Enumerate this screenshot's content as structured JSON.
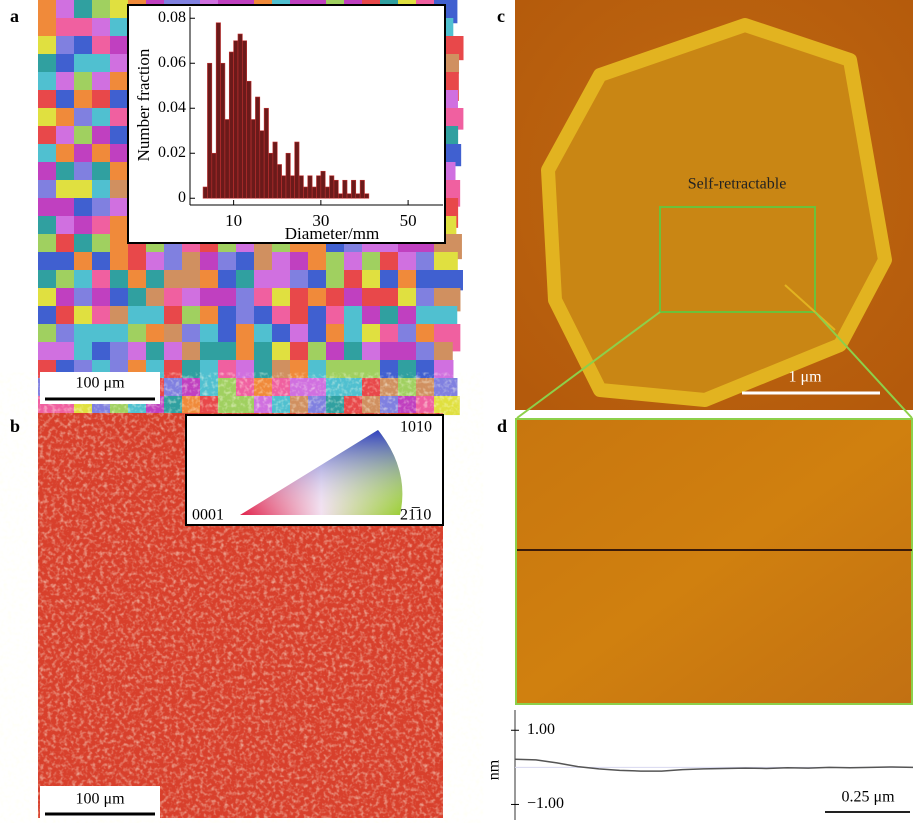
{
  "panels": {
    "a": {
      "label": "a",
      "scale_bar": "100 μm"
    },
    "b": {
      "label": "b",
      "scale_bar": "100 μm",
      "ipf_labels": [
        "0001",
        "1010",
        "21̅10"
      ]
    },
    "c": {
      "label": "c",
      "annotation": "Self-retractable",
      "scale_bar": "1 μm"
    },
    "d": {
      "label": "d",
      "scale_bar": "0.25 μm"
    }
  },
  "chart_data": [
    {
      "type": "histogram",
      "xlabel": "Diameter/mm",
      "ylabel": "Number fraction",
      "color": "#6b1a1a",
      "bins": [
        3,
        4,
        5,
        6,
        7,
        8,
        9,
        10,
        11,
        12,
        13,
        14,
        15,
        16,
        17,
        18,
        19,
        20,
        21,
        22,
        23,
        24,
        25,
        26,
        27,
        28,
        29,
        30,
        31,
        32,
        33,
        34,
        35,
        36,
        37,
        38,
        39,
        40,
        41
      ],
      "values": [
        0.005,
        0.06,
        0.02,
        0.078,
        0.06,
        0.035,
        0.065,
        0.07,
        0.073,
        0.07,
        0.052,
        0.035,
        0.045,
        0.03,
        0.04,
        0.02,
        0.025,
        0.015,
        0.01,
        0.02,
        0.01,
        0.025,
        0.01,
        0.005,
        0.01,
        0.005,
        0.01,
        0.012,
        0.005,
        0.01,
        0.008,
        0.002,
        0.008,
        0.002,
        0.008,
        0.002,
        0.008,
        0.002
      ],
      "xlim": [
        0,
        58
      ],
      "xticks": [
        10,
        30,
        50
      ],
      "ylim": [
        -0.003,
        0.085
      ],
      "yticks": [
        0,
        0.02,
        0.04,
        0.06,
        0.08
      ]
    },
    {
      "type": "line",
      "ylabel": "nm",
      "color": "#555555",
      "values": [
        0.22,
        0.2,
        0.12,
        0.02,
        -0.04,
        -0.08,
        -0.1,
        -0.1,
        -0.06,
        -0.04,
        -0.03,
        -0.02,
        -0.03,
        -0.01,
        -0.02,
        0.0,
        -0.01,
        0.0,
        0.01,
        0.0
      ],
      "ylim": [
        -1.5,
        1.6
      ],
      "yticks": [
        {
          "value": 1,
          "label": "1.00"
        },
        {
          "value": -1,
          "label": "−1.00"
        }
      ]
    }
  ]
}
